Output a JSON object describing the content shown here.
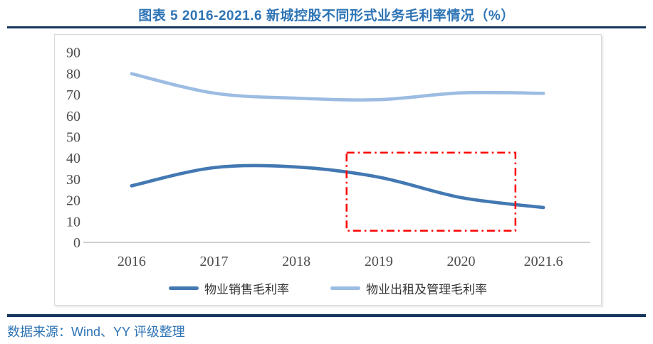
{
  "header": {
    "title": "图表  5 2016-2021.6 新城控股不同形式业务毛利率情况（%）"
  },
  "footer": {
    "source": "数据来源：Wind、YY 评级整理"
  },
  "colors": {
    "title_blue": "#2E74B5",
    "divider_navy": "#17365D",
    "series_sales": "#4379B3",
    "series_rental": "#9CBCE2",
    "annotation_red": "#FE0000",
    "axis_text": "#4D4D4D",
    "axis_line": "#C0C0C0",
    "frame_border": "#D9D9D9"
  },
  "chart_data": {
    "type": "line",
    "title": "图表 5 2016-2021.6 新城控股不同形式业务毛利率情况（%）",
    "categories": [
      "2016",
      "2017",
      "2018",
      "2019",
      "2020",
      "2021.6"
    ],
    "series": [
      {
        "name": "物业销售毛利率",
        "color": "#4379B3",
        "values": [
          26.8,
          35.4,
          35.7,
          30.9,
          21.2,
          16.5
        ]
      },
      {
        "name": "物业出租及管理毛利率",
        "color": "#9CBCE2",
        "values": [
          79.9,
          70.7,
          68.3,
          67.6,
          70.8,
          70.6
        ]
      }
    ],
    "xlabel": "",
    "ylabel": "",
    "ylim": [
      0,
      90
    ],
    "yticks": [
      0,
      10,
      20,
      30,
      40,
      50,
      60,
      70,
      80,
      90
    ],
    "grid": false,
    "smooth_lines": true,
    "legend_position": "bottom",
    "annotation": {
      "shape": "dash-dot-box",
      "color": "#FE0000",
      "x_start_category_index": 2.61,
      "x_end_category_index": 4.66,
      "y_min": 5.5,
      "y_max": 42.5
    }
  }
}
